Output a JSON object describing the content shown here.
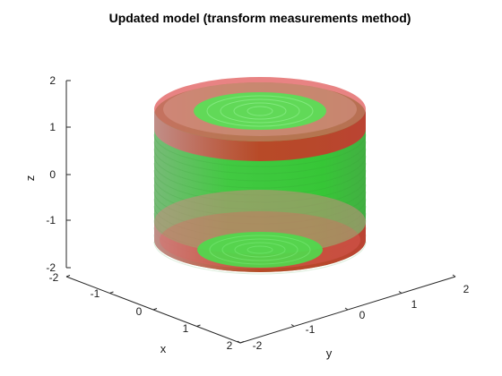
{
  "chart_data": {
    "type": "surface3d",
    "title": "Updated model (transform measurements method)",
    "xlabel": "x",
    "ylabel": "y",
    "zlabel": "z",
    "xlim": [
      -2,
      2
    ],
    "ylim": [
      -2,
      2
    ],
    "zlim": [
      -2,
      2
    ],
    "xticks": [
      "-2",
      "-1",
      "0",
      "1",
      "2"
    ],
    "yticks": [
      "-2",
      "-1",
      "0",
      "1",
      "2"
    ],
    "zticks": [
      "2",
      "1",
      "0",
      "-1",
      "-2"
    ],
    "grid": false,
    "series": [
      {
        "shape": "cylinder",
        "color": "#20c020",
        "radius": 1.6,
        "z_range": [
          -1.5,
          1.5
        ],
        "alpha": 0.6
      },
      {
        "shape": "ring",
        "color": "#e02020",
        "outer_radius": 1.7,
        "inner_radius": 1.0,
        "z_range": [
          1.0,
          1.5
        ],
        "alpha": 0.5
      },
      {
        "shape": "ring",
        "color": "#e02020",
        "outer_radius": 1.7,
        "inner_radius": 1.0,
        "z_range": [
          -1.5,
          -1.0
        ],
        "alpha": 0.5
      }
    ]
  },
  "colors": {
    "green": "#20c020",
    "red": "#e02020",
    "axis": "#262626"
  }
}
